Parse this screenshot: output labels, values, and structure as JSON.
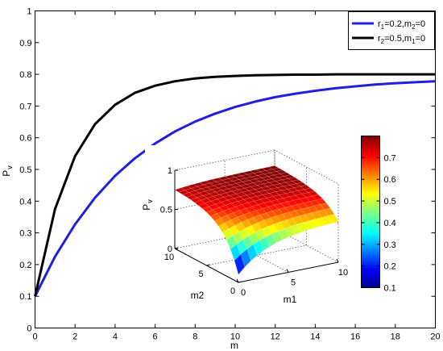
{
  "chart_data": [
    {
      "type": "line",
      "xlabel": "m",
      "ylabel_main": "P",
      "ylabel_sub": "v",
      "xlim": [
        0,
        20
      ],
      "ylim": [
        0,
        1
      ],
      "xticks": [
        "0",
        "2",
        "4",
        "6",
        "8",
        "10",
        "12",
        "14",
        "16",
        "18",
        "20"
      ],
      "yticks": [
        "0",
        "0.1",
        "0.2",
        "0.3",
        "0.4",
        "0.5",
        "0.6",
        "0.7",
        "0.8",
        "0.9",
        "1"
      ],
      "grid": false,
      "legend_position": "top-right",
      "series": [
        {
          "name_main": "r",
          "name_sub1": "1",
          "name_mid": "=0.2,m",
          "name_sub2": "2",
          "name_end": "=0",
          "color": "#1f1fe0",
          "x": [
            0,
            1,
            2,
            3,
            4,
            5,
            6,
            7,
            8,
            9,
            10,
            11,
            12,
            13,
            14,
            15,
            16,
            17,
            18,
            19,
            20
          ],
          "y": [
            0.1,
            0.225,
            0.327,
            0.411,
            0.48,
            0.536,
            0.582,
            0.62,
            0.651,
            0.676,
            0.697,
            0.714,
            0.728,
            0.739,
            0.748,
            0.756,
            0.762,
            0.768,
            0.772,
            0.775,
            0.778
          ]
        },
        {
          "name_main": "r",
          "name_sub1": "2",
          "name_mid": "=0.5,m",
          "name_sub2": "1",
          "name_end": "=0",
          "color": "#000000",
          "x": [
            0,
            1,
            2,
            3,
            4,
            5,
            6,
            7,
            8,
            9,
            10,
            11,
            12,
            13,
            14,
            15,
            16,
            17,
            18,
            19,
            20
          ],
          "y": [
            0.1,
            0.375,
            0.542,
            0.643,
            0.704,
            0.742,
            0.764,
            0.778,
            0.787,
            0.792,
            0.795,
            0.797,
            0.798,
            0.799,
            0.799,
            0.8,
            0.8,
            0.8,
            0.8,
            0.8,
            0.8
          ]
        }
      ]
    },
    {
      "type": "surface",
      "xlabel": "m1",
      "ylabel": "m2",
      "zlabel_main": "P",
      "zlabel_sub": "v",
      "xlim": [
        0,
        10
      ],
      "ylim": [
        0,
        10
      ],
      "zlim": [
        0,
        1
      ],
      "xticks": [
        "0",
        "5",
        "10"
      ],
      "yticks": [
        "0",
        "5",
        "10"
      ],
      "zticks": [
        "0",
        "0.5",
        "1"
      ],
      "z_corners": {
        "m1_0_m2_0": 0.1,
        "m1_10_m2_0": 0.52,
        "m1_0_m2_10": 0.75,
        "m1_10_m2_10": 0.8
      },
      "colorbar": {
        "min": 0.1,
        "max": 0.8,
        "ticks": [
          "0.1",
          "0.2",
          "0.3",
          "0.4",
          "0.5",
          "0.6",
          "0.7"
        ],
        "colormap": "jet"
      }
    }
  ]
}
